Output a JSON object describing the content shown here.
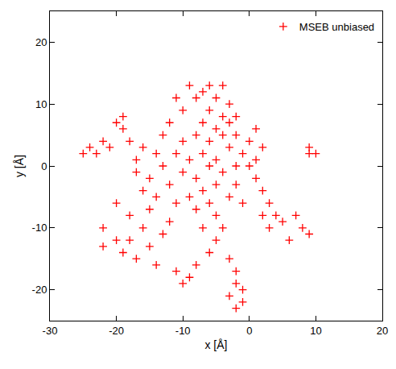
{
  "chart_data": {
    "type": "scatter",
    "x_label": "x [Å]",
    "y_label": "y [Å]",
    "xlim": [
      -30,
      20
    ],
    "ylim": [
      -25,
      25
    ],
    "xticks": [
      -30,
      -20,
      -10,
      0,
      10,
      20
    ],
    "yticks": [
      -20,
      -10,
      0,
      10,
      20
    ],
    "grid": false,
    "legend": "upper right",
    "series": [
      {
        "name": "MSEB unbiased",
        "color": "#ff0000",
        "marker": "plus",
        "x": [
          -6,
          -5,
          -4,
          -7,
          -3,
          -8,
          -5,
          -2,
          -6,
          -4,
          -9,
          -7,
          -3,
          -1,
          -5,
          -8,
          -10,
          -2,
          0,
          -6,
          -4,
          -7,
          -9,
          -11,
          -1,
          1,
          -3,
          -12,
          -8,
          -5,
          -13,
          -2,
          0,
          -10,
          -6,
          -11,
          -4,
          -14,
          -7,
          1,
          -14,
          -16,
          -17,
          -18,
          -19,
          -20,
          -19,
          -21,
          -23,
          -24,
          -25,
          -22,
          -17,
          -15,
          -13,
          -12,
          -10,
          -8,
          -7,
          -5,
          -3,
          -2,
          -9,
          -11,
          -6,
          -4,
          -16,
          -18,
          -20,
          -22,
          -19,
          -17,
          -15,
          -13,
          -12,
          -14,
          -11,
          -10,
          -9,
          -8,
          -6,
          -5,
          -3,
          -2,
          -2,
          -3,
          -1,
          -2,
          -1,
          2,
          3,
          4,
          5,
          7,
          8,
          9,
          6,
          3,
          2,
          9,
          10,
          9,
          1,
          2,
          -20,
          -18,
          -15,
          -22,
          -16
        ],
        "values": [
          0,
          1,
          -1,
          2,
          3,
          -2,
          -3,
          0,
          4,
          5,
          1,
          -4,
          -5,
          2,
          6,
          5,
          -1,
          -3,
          0,
          -6,
          8,
          7,
          -5,
          2,
          -6,
          -2,
          7,
          -3,
          -7,
          -8,
          0,
          5,
          4,
          4,
          9,
          -6,
          -10,
          -5,
          -10,
          1,
          2,
          3,
          1,
          4,
          6,
          7,
          8,
          3,
          2,
          3,
          2,
          4,
          -1,
          -2,
          5,
          7,
          9,
          11,
          12,
          11,
          10,
          8,
          13,
          11,
          13,
          13,
          -10,
          -12,
          -12,
          -13,
          -14,
          -15,
          -13,
          -11,
          -9,
          -16,
          -17,
          -19,
          -18,
          -16,
          -14,
          -12,
          -15,
          -17,
          -19,
          -21,
          -22,
          -23,
          -20,
          -4,
          -6,
          -8,
          -9,
          -8,
          -10,
          -11,
          -12,
          -10,
          -8,
          2,
          2,
          3,
          6,
          3,
          -6,
          -8,
          -7,
          -10,
          -4
        ]
      }
    ]
  }
}
